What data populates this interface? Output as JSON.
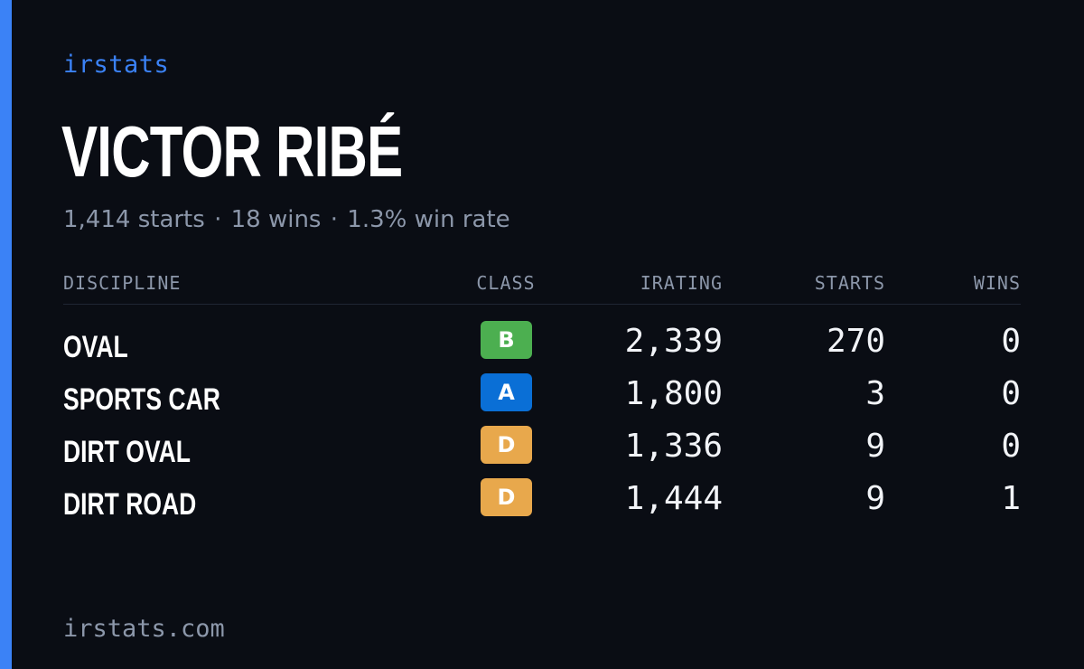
{
  "brand": "irstats",
  "player": {
    "name": "VICTOR RIBÉ",
    "summary": {
      "starts": "1,414 starts",
      "wins": "18 wins",
      "win_rate": "1.3% win rate",
      "separator": "·"
    }
  },
  "table": {
    "headers": {
      "discipline": "DISCIPLINE",
      "class": "CLASS",
      "irating": "IRATING",
      "starts": "STARTS",
      "wins": "WINS"
    },
    "rows": [
      {
        "discipline": "OVAL",
        "class": "B",
        "class_color": "#4caf50",
        "irating": "2,339",
        "starts": "270",
        "wins": "0"
      },
      {
        "discipline": "SPORTS CAR",
        "class": "A",
        "class_color": "#0a6fd6",
        "irating": "1,800",
        "starts": "3",
        "wins": "0"
      },
      {
        "discipline": "DIRT OVAL",
        "class": "D",
        "class_color": "#e8a84c",
        "irating": "1,336",
        "starts": "9",
        "wins": "0"
      },
      {
        "discipline": "DIRT ROAD",
        "class": "D",
        "class_color": "#e8a84c",
        "irating": "1,444",
        "starts": "9",
        "wins": "1"
      }
    ]
  },
  "footer": "irstats.com",
  "colors": {
    "accent": "#3b82f6",
    "background": "#0a0d14",
    "muted_text": "#8c97aa"
  }
}
